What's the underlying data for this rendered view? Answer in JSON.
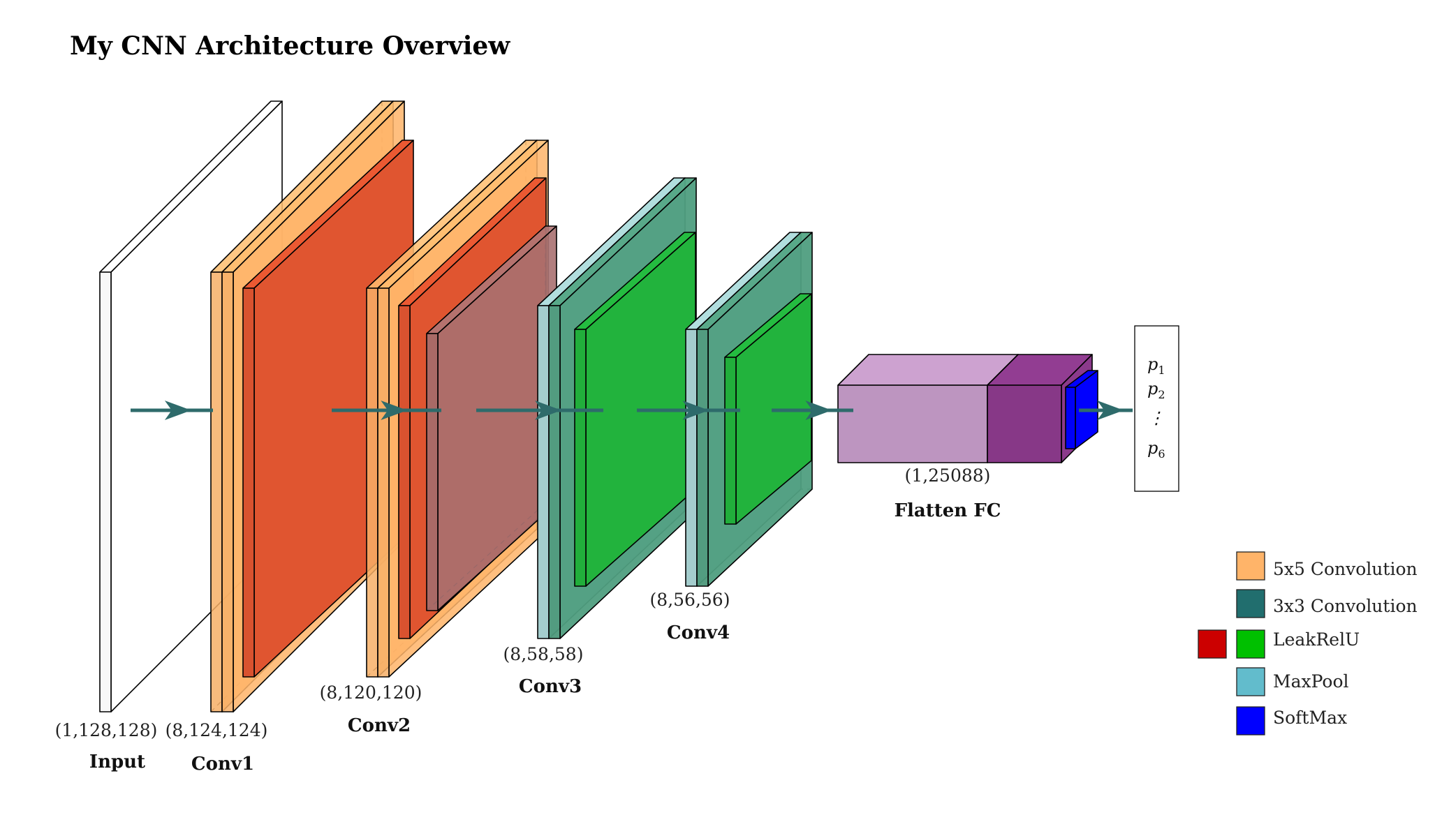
{
  "title": "My CNN Architecture Overview",
  "blocks": {
    "input": {
      "label": "Input",
      "dims": "(1,128,128)"
    },
    "conv1": {
      "label": "Conv1",
      "dims": "(8,124,124)"
    },
    "conv2": {
      "label": "Conv2",
      "dims": "(8,120,120)"
    },
    "conv3": {
      "label": "Conv3",
      "dims": "(8,58,58)"
    },
    "conv4": {
      "label": "Conv4",
      "dims": "(8,56,56)"
    },
    "fc": {
      "label": "Flatten FC",
      "dims": "(1,25088)"
    }
  },
  "output": {
    "p1": "p",
    "p1_sub": "1",
    "p2": "p",
    "p2_sub": "2",
    "dots": "⋮",
    "p6": "p",
    "p6_sub": "6"
  },
  "legend": [
    {
      "label": "5x5 Convolution",
      "color": "#ffb469"
    },
    {
      "label": "3x3 Convolution",
      "color": "#216e6e"
    },
    {
      "label": "LeakRelU",
      "color": "#00c000",
      "extra_color": "#cc0000"
    },
    {
      "label": "MaxPool",
      "color": "#62bccc"
    },
    {
      "label": "SoftMax",
      "color": "#0000ff"
    }
  ],
  "colors": {
    "conv5": "#ffb469",
    "relu_red": "#e05530",
    "conv3": "#4f9e7f",
    "pool_light": "#a9d3d3",
    "relu_green": "#22b33d",
    "maxpool_conv2": "#a87070",
    "fc_light": "#c39ac6",
    "fc_dark": "#8b3a8b",
    "softmax": "#0000ff",
    "arrow": "#2e6b6b"
  }
}
